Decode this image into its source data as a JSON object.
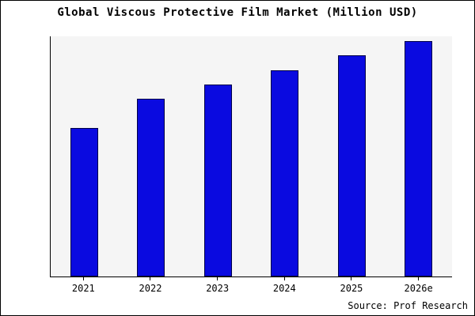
{
  "chart_data": {
    "type": "bar",
    "title": "Global Viscous Protective Film Market (Million USD)",
    "categories": [
      "2021",
      "2022",
      "2023",
      "2024",
      "2025",
      "2026e"
    ],
    "values": [
      62,
      74,
      80,
      86,
      92,
      98
    ],
    "ylim": [
      0,
      100
    ],
    "xlabel": "",
    "ylabel": "",
    "grid": false,
    "legend_position": "none",
    "y_axis_tick_labels_visible": false,
    "bar_color": "#0a0ae0",
    "bar_border_color": "#000046",
    "plot_background": "#f5f5f5",
    "axis_color": "#000000"
  },
  "source": "Source: Prof Research"
}
